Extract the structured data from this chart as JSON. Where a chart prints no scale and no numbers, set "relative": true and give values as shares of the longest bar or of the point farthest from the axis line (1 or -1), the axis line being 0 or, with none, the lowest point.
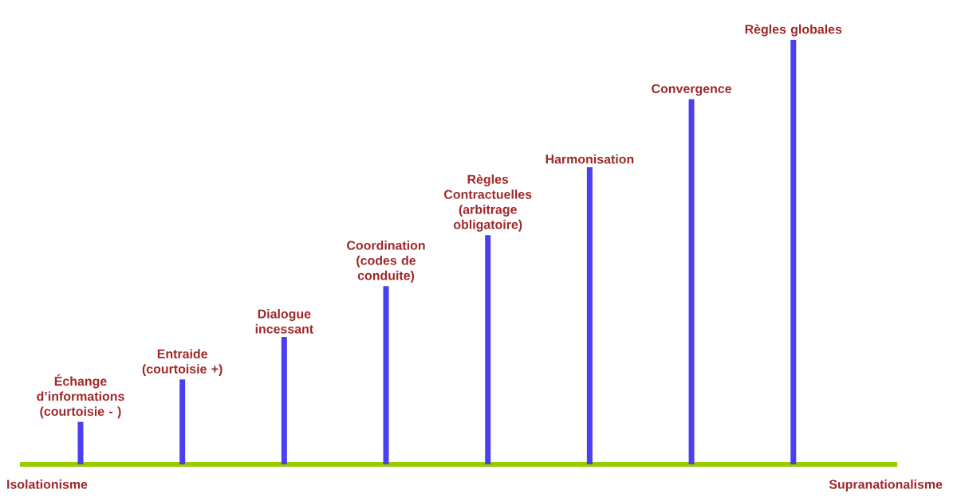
{
  "chart_data": {
    "type": "bar",
    "relative": true,
    "categories": [
      "Échange d’informations (courtoisie - )",
      "Entraide (courtoisie +)",
      "Dialogue incessant",
      "Coordination (codes de conduite)",
      "Règles Contractuelles (arbitrage obligatoire)",
      "Harmonisation",
      "Convergence",
      "Règles globales"
    ],
    "values": [
      0.1,
      0.2,
      0.3,
      0.42,
      0.54,
      0.7,
      0.86,
      1.0
    ],
    "color": "#4b3ff2",
    "annotations": [
      "Isolationisme",
      "Supranationalisme"
    ]
  }
}
